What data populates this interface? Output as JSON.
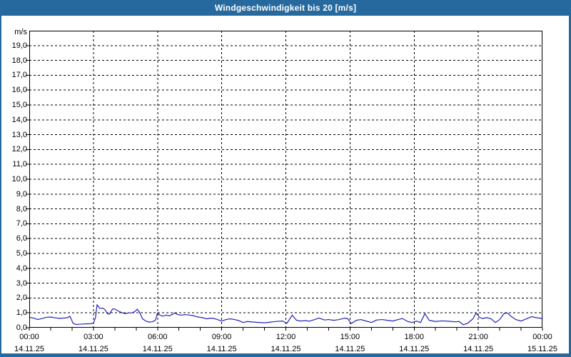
{
  "window": {
    "title": "Windgeschwindigkeit bis 20 [m/s]"
  },
  "colors": {
    "titlebar_bg": "#26699e",
    "titlebar_text": "#ffffff",
    "window_border": "#26699e",
    "plot_background": "#ffffff",
    "axis_frame": "#000000",
    "gridline": "#000000",
    "tick_text": "#000000",
    "series_line": "#2323b8"
  },
  "chart_data": {
    "type": "line",
    "title": "Windgeschwindigkeit bis 20 [m/s]",
    "ylabel": "m/s",
    "unit_label": "m/s",
    "ylim": [
      0,
      20
    ],
    "y_tick_step": 1.0,
    "y_tick_labels": [
      "0,0",
      "1,0",
      "2,0",
      "3,0",
      "4,0",
      "5,0",
      "6,0",
      "7,0",
      "8,0",
      "9,0",
      "10,0",
      "11,0",
      "12,0",
      "13,0",
      "14,0",
      "15,0",
      "16,0",
      "17,0",
      "18,0",
      "19,0"
    ],
    "x_range_hours": [
      0,
      24
    ],
    "x_major_tick_hours": 3,
    "x_minor_tick_hours": 1,
    "x_ticks": [
      {
        "time": "00:00",
        "date": "14.11.25"
      },
      {
        "time": "03:00",
        "date": "14.11.25"
      },
      {
        "time": "06:00",
        "date": "14.11.25"
      },
      {
        "time": "09:00",
        "date": "14.11.25"
      },
      {
        "time": "12:00",
        "date": "14.11.25"
      },
      {
        "time": "15:00",
        "date": "14.11.25"
      },
      {
        "time": "18:00",
        "date": "14.11.25"
      },
      {
        "time": "21:00",
        "date": "14.11.25"
      },
      {
        "time": "00:00",
        "date": "15.11.25"
      }
    ],
    "grid": "dashed",
    "legend": "none",
    "series": [
      {
        "name": "Windgeschwindigkeit",
        "color": "#2323b8",
        "points": [
          [
            0.0,
            0.7
          ],
          [
            0.2,
            0.65
          ],
          [
            0.4,
            0.55
          ],
          [
            0.6,
            0.62
          ],
          [
            0.8,
            0.7
          ],
          [
            1.0,
            0.72
          ],
          [
            1.2,
            0.67
          ],
          [
            1.4,
            0.63
          ],
          [
            1.6,
            0.65
          ],
          [
            1.8,
            0.68
          ],
          [
            1.9,
            0.78
          ],
          [
            2.05,
            0.3
          ],
          [
            2.2,
            0.22
          ],
          [
            2.5,
            0.25
          ],
          [
            2.8,
            0.27
          ],
          [
            3.0,
            0.3
          ],
          [
            3.1,
            0.7
          ],
          [
            3.17,
            1.55
          ],
          [
            3.3,
            1.3
          ],
          [
            3.45,
            1.32
          ],
          [
            3.55,
            1.2
          ],
          [
            3.65,
            0.95
          ],
          [
            3.75,
            0.92
          ],
          [
            3.9,
            1.27
          ],
          [
            4.0,
            1.25
          ],
          [
            4.2,
            1.1
          ],
          [
            4.35,
            1.0
          ],
          [
            4.5,
            0.95
          ],
          [
            4.65,
            1.0
          ],
          [
            4.8,
            1.0
          ],
          [
            4.95,
            1.1
          ],
          [
            5.05,
            1.25
          ],
          [
            5.15,
            1.05
          ],
          [
            5.3,
            0.6
          ],
          [
            5.45,
            0.45
          ],
          [
            5.6,
            0.38
          ],
          [
            5.75,
            0.4
          ],
          [
            5.9,
            0.5
          ],
          [
            6.0,
            1.0
          ],
          [
            6.1,
            0.85
          ],
          [
            6.25,
            0.78
          ],
          [
            6.4,
            0.85
          ],
          [
            6.55,
            0.8
          ],
          [
            6.7,
            0.9
          ],
          [
            6.8,
            1.0
          ],
          [
            6.95,
            0.88
          ],
          [
            7.1,
            0.85
          ],
          [
            7.3,
            0.88
          ],
          [
            7.5,
            0.85
          ],
          [
            7.7,
            0.8
          ],
          [
            7.9,
            0.72
          ],
          [
            8.1,
            0.68
          ],
          [
            8.3,
            0.6
          ],
          [
            8.5,
            0.65
          ],
          [
            8.7,
            0.6
          ],
          [
            8.9,
            0.5
          ],
          [
            9.0,
            0.45
          ],
          [
            9.2,
            0.55
          ],
          [
            9.4,
            0.6
          ],
          [
            9.6,
            0.55
          ],
          [
            9.8,
            0.48
          ],
          [
            10.0,
            0.35
          ],
          [
            10.2,
            0.42
          ],
          [
            10.5,
            0.38
          ],
          [
            10.8,
            0.35
          ],
          [
            11.0,
            0.33
          ],
          [
            11.3,
            0.38
          ],
          [
            11.6,
            0.43
          ],
          [
            11.85,
            0.45
          ],
          [
            12.05,
            0.3
          ],
          [
            12.3,
            0.85
          ],
          [
            12.5,
            0.5
          ],
          [
            12.7,
            0.45
          ],
          [
            12.9,
            0.48
          ],
          [
            13.1,
            0.44
          ],
          [
            13.35,
            0.55
          ],
          [
            13.55,
            0.65
          ],
          [
            13.8,
            0.52
          ],
          [
            14.0,
            0.55
          ],
          [
            14.25,
            0.5
          ],
          [
            14.5,
            0.55
          ],
          [
            14.75,
            0.65
          ],
          [
            14.9,
            0.6
          ],
          [
            15.05,
            0.28
          ],
          [
            15.3,
            0.5
          ],
          [
            15.5,
            0.55
          ],
          [
            15.75,
            0.45
          ],
          [
            16.0,
            0.35
          ],
          [
            16.25,
            0.52
          ],
          [
            16.5,
            0.55
          ],
          [
            16.75,
            0.5
          ],
          [
            17.0,
            0.45
          ],
          [
            17.25,
            0.55
          ],
          [
            17.45,
            0.62
          ],
          [
            17.7,
            0.42
          ],
          [
            17.9,
            0.35
          ],
          [
            18.1,
            0.45
          ],
          [
            18.3,
            0.35
          ],
          [
            18.5,
            0.95
          ],
          [
            18.7,
            0.5
          ],
          [
            19.0,
            0.42
          ],
          [
            19.3,
            0.46
          ],
          [
            19.6,
            0.44
          ],
          [
            19.9,
            0.4
          ],
          [
            20.1,
            0.42
          ],
          [
            20.3,
            0.2
          ],
          [
            20.5,
            0.3
          ],
          [
            20.75,
            0.6
          ],
          [
            20.9,
            1.0
          ],
          [
            21.05,
            0.7
          ],
          [
            21.2,
            0.62
          ],
          [
            21.4,
            0.68
          ],
          [
            21.6,
            0.6
          ],
          [
            21.8,
            0.35
          ],
          [
            22.0,
            0.55
          ],
          [
            22.2,
            0.95
          ],
          [
            22.35,
            1.0
          ],
          [
            22.55,
            0.75
          ],
          [
            22.75,
            0.55
          ],
          [
            23.0,
            0.45
          ],
          [
            23.25,
            0.6
          ],
          [
            23.5,
            0.75
          ],
          [
            23.7,
            0.68
          ],
          [
            23.85,
            0.65
          ],
          [
            24.0,
            0.62
          ]
        ]
      }
    ]
  }
}
